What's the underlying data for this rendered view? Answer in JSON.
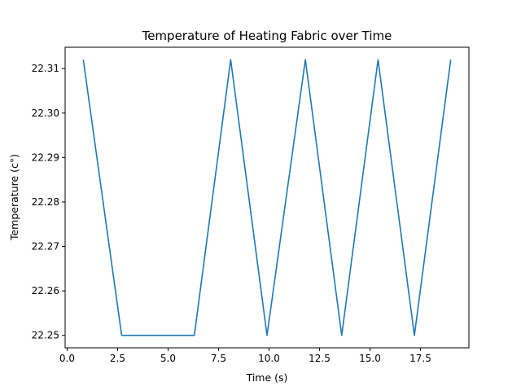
{
  "chart_data": {
    "type": "line",
    "title": "Temperature of Heating Fabric over Time",
    "xlabel": "Time (s)",
    "ylabel": "Temperature (c°)",
    "xlim": [
      -0.1,
      19.9
    ],
    "ylim": [
      22.2472,
      22.3148
    ],
    "xticks": [
      0.0,
      2.5,
      5.0,
      7.5,
      10.0,
      12.5,
      15.0,
      17.5
    ],
    "xtick_labels": [
      "0.0",
      "2.5",
      "5.0",
      "7.5",
      "10.0",
      "12.5",
      "15.0",
      "17.5"
    ],
    "yticks": [
      22.25,
      22.26,
      22.27,
      22.28,
      22.29,
      22.3,
      22.31
    ],
    "ytick_labels": [
      "22.25",
      "22.26",
      "22.27",
      "22.28",
      "22.29",
      "22.30",
      "22.31"
    ],
    "grid": false,
    "series": [
      {
        "color": "#1f77b4",
        "x": [
          0.8,
          2.7,
          4.5,
          6.3,
          8.1,
          9.9,
          11.8,
          13.6,
          15.4,
          17.2,
          19.0
        ],
        "y": [
          22.312,
          22.25,
          22.25,
          22.25,
          22.312,
          22.25,
          22.312,
          22.25,
          22.312,
          22.25,
          22.312
        ]
      }
    ]
  }
}
